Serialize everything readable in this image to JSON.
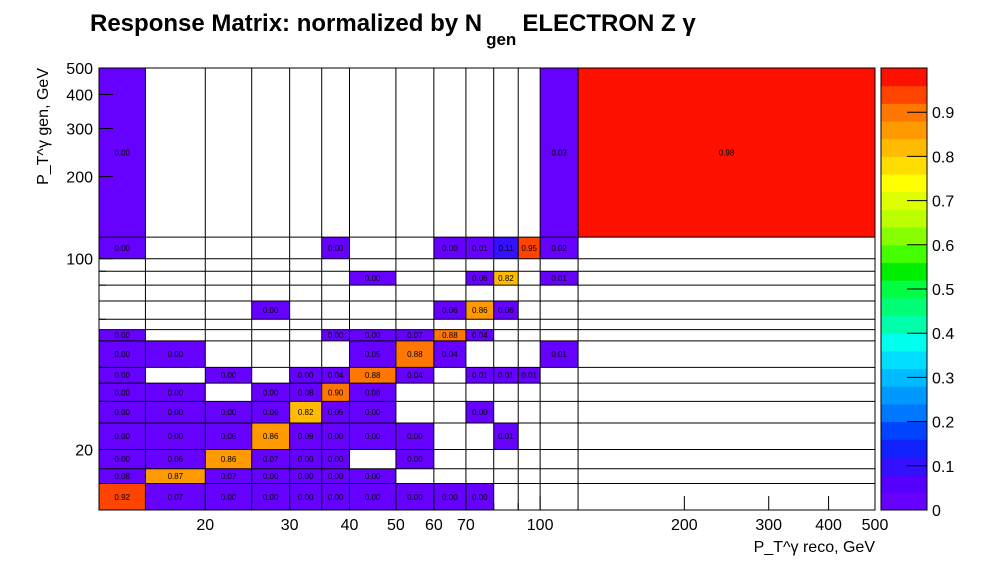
{
  "chart_data": {
    "type": "heatmap",
    "title": {
      "main": "Response Matrix: normalized by N",
      "sub": "gen",
      "suffix": "ELECTRON Z γ"
    },
    "xlabel": "P_T^γ reco, GeV",
    "ylabel": "P_T^γ gen, GeV",
    "x_scale": "log",
    "y_scale": "log",
    "xlim": [
      12,
      500
    ],
    "ylim": [
      12,
      500
    ],
    "x_ticks": [
      20,
      30,
      40,
      50,
      60,
      70,
      100,
      200,
      300,
      400,
      500
    ],
    "y_ticks": [
      20,
      100,
      200,
      300,
      400,
      500
    ],
    "x_bins": [
      12,
      15,
      20,
      25,
      30,
      35,
      40,
      50,
      60,
      70,
      80,
      90,
      100,
      120,
      500
    ],
    "y_bins": [
      12,
      15,
      17,
      20,
      25,
      30,
      35,
      40,
      50,
      55,
      60,
      70,
      80,
      90,
      100,
      120,
      500
    ],
    "colorbar": {
      "range": [
        0,
        1
      ],
      "ticks": [
        "0",
        "0.1",
        "0.2",
        "0.3",
        "0.4",
        "0.5",
        "0.6",
        "0.7",
        "0.8",
        "0.9"
      ]
    },
    "cells": [
      {
        "xi": 0,
        "yi": 0,
        "value": 0.92,
        "label": "0.92"
      },
      {
        "xi": 1,
        "yi": 0,
        "value": 0.07,
        "label": "0.07"
      },
      {
        "xi": 2,
        "yi": 0,
        "value": 0.0,
        "label": "0.00"
      },
      {
        "xi": 3,
        "yi": 0,
        "value": 0.0,
        "label": "0.00"
      },
      {
        "xi": 4,
        "yi": 0,
        "value": 0.0,
        "label": "0.00"
      },
      {
        "xi": 5,
        "yi": 0,
        "value": 0.0,
        "label": "0.00"
      },
      {
        "xi": 6,
        "yi": 0,
        "value": 0.0,
        "label": "0.00"
      },
      {
        "xi": 7,
        "yi": 0,
        "value": 0.0,
        "label": "0.00"
      },
      {
        "xi": 8,
        "yi": 0,
        "value": 0.0,
        "label": "0.00"
      },
      {
        "xi": 9,
        "yi": 0,
        "value": 0.0,
        "label": "0.00"
      },
      {
        "xi": 0,
        "yi": 1,
        "value": 0.08,
        "label": "0.08"
      },
      {
        "xi": 1,
        "yi": 1,
        "value": 0.87,
        "label": "0.87"
      },
      {
        "xi": 2,
        "yi": 1,
        "value": 0.07,
        "label": "0.07"
      },
      {
        "xi": 3,
        "yi": 1,
        "value": 0.0,
        "label": "0.00"
      },
      {
        "xi": 4,
        "yi": 1,
        "value": 0.0,
        "label": "0.00"
      },
      {
        "xi": 5,
        "yi": 1,
        "value": 0.0,
        "label": "0.00"
      },
      {
        "xi": 6,
        "yi": 1,
        "value": 0.0,
        "label": "0.00"
      },
      {
        "xi": 0,
        "yi": 2,
        "value": 0.0,
        "label": "0.00"
      },
      {
        "xi": 1,
        "yi": 2,
        "value": 0.06,
        "label": "0.06"
      },
      {
        "xi": 2,
        "yi": 2,
        "value": 0.86,
        "label": "0.86"
      },
      {
        "xi": 3,
        "yi": 2,
        "value": 0.07,
        "label": "0.07"
      },
      {
        "xi": 4,
        "yi": 2,
        "value": 0.0,
        "label": "0.00"
      },
      {
        "xi": 5,
        "yi": 2,
        "value": 0.0,
        "label": "0.00"
      },
      {
        "xi": 7,
        "yi": 2,
        "value": 0.0,
        "label": "0.00"
      },
      {
        "xi": 0,
        "yi": 3,
        "value": 0.0,
        "label": "0.00"
      },
      {
        "xi": 1,
        "yi": 3,
        "value": 0.0,
        "label": "0.00"
      },
      {
        "xi": 2,
        "yi": 3,
        "value": 0.06,
        "label": "0.06"
      },
      {
        "xi": 3,
        "yi": 3,
        "value": 0.86,
        "label": "0.86"
      },
      {
        "xi": 4,
        "yi": 3,
        "value": 0.09,
        "label": "0.09"
      },
      {
        "xi": 5,
        "yi": 3,
        "value": 0.0,
        "label": "0.00"
      },
      {
        "xi": 6,
        "yi": 3,
        "value": 0.0,
        "label": "0.00"
      },
      {
        "xi": 7,
        "yi": 3,
        "value": 0.0,
        "label": "0.00"
      },
      {
        "xi": 10,
        "yi": 3,
        "value": 0.01,
        "label": "0.01"
      },
      {
        "xi": 0,
        "yi": 4,
        "value": 0.0,
        "label": "0.00"
      },
      {
        "xi": 1,
        "yi": 4,
        "value": 0.0,
        "label": "0.00"
      },
      {
        "xi": 2,
        "yi": 4,
        "value": 0.0,
        "label": "0.00"
      },
      {
        "xi": 3,
        "yi": 4,
        "value": 0.06,
        "label": "0.06"
      },
      {
        "xi": 4,
        "yi": 4,
        "value": 0.82,
        "label": "0.82"
      },
      {
        "xi": 5,
        "yi": 4,
        "value": 0.05,
        "label": "0.05"
      },
      {
        "xi": 6,
        "yi": 4,
        "value": 0.0,
        "label": "0.00"
      },
      {
        "xi": 9,
        "yi": 4,
        "value": 0.0,
        "label": "0.00"
      },
      {
        "xi": 0,
        "yi": 5,
        "value": 0.0,
        "label": "0.00"
      },
      {
        "xi": 1,
        "yi": 5,
        "value": 0.0,
        "label": "0.00"
      },
      {
        "xi": 3,
        "yi": 5,
        "value": 0.0,
        "label": "0.00"
      },
      {
        "xi": 4,
        "yi": 5,
        "value": 0.08,
        "label": "0.08"
      },
      {
        "xi": 5,
        "yi": 5,
        "value": 0.9,
        "label": "0.90"
      },
      {
        "xi": 6,
        "yi": 5,
        "value": 0.06,
        "label": "0.06"
      },
      {
        "xi": 0,
        "yi": 6,
        "value": 0.0,
        "label": "0.00"
      },
      {
        "xi": 2,
        "yi": 6,
        "value": 0.0,
        "label": "0.00"
      },
      {
        "xi": 4,
        "yi": 6,
        "value": 0.0,
        "label": "0.00"
      },
      {
        "xi": 5,
        "yi": 6,
        "value": 0.04,
        "label": "0.04"
      },
      {
        "xi": 6,
        "yi": 6,
        "value": 0.88,
        "label": "0.88"
      },
      {
        "xi": 7,
        "yi": 6,
        "value": 0.04,
        "label": "0.04"
      },
      {
        "xi": 9,
        "yi": 6,
        "value": 0.01,
        "label": "0.01"
      },
      {
        "xi": 10,
        "yi": 6,
        "value": 0.01,
        "label": "0.01"
      },
      {
        "xi": 11,
        "yi": 6,
        "value": 0.01,
        "label": "0.01"
      },
      {
        "xi": 0,
        "yi": 7,
        "value": 0.0,
        "label": "0.00"
      },
      {
        "xi": 1,
        "yi": 7,
        "value": 0.0,
        "label": "0.00"
      },
      {
        "xi": 6,
        "yi": 7,
        "value": 0.05,
        "label": "0.05"
      },
      {
        "xi": 7,
        "yi": 7,
        "value": 0.88,
        "label": "0.88"
      },
      {
        "xi": 8,
        "yi": 7,
        "value": 0.04,
        "label": "0.04"
      },
      {
        "xi": 12,
        "yi": 7,
        "value": 0.01,
        "label": "0.01"
      },
      {
        "xi": 0,
        "yi": 8,
        "value": 0.0,
        "label": "0.00"
      },
      {
        "xi": 5,
        "yi": 8,
        "value": 0.0,
        "label": "0.00"
      },
      {
        "xi": 6,
        "yi": 8,
        "value": 0.0,
        "label": "0.00"
      },
      {
        "xi": 7,
        "yi": 8,
        "value": 0.07,
        "label": "0.07"
      },
      {
        "xi": 8,
        "yi": 8,
        "value": 0.88,
        "label": "0.88"
      },
      {
        "xi": 9,
        "yi": 8,
        "value": 0.04,
        "label": "0.04"
      },
      {
        "xi": 3,
        "yi": 10,
        "value": 0.0,
        "label": "0.00"
      },
      {
        "xi": 8,
        "yi": 10,
        "value": 0.06,
        "label": "0.06"
      },
      {
        "xi": 9,
        "yi": 10,
        "value": 0.86,
        "label": "0.86"
      },
      {
        "xi": 10,
        "yi": 10,
        "value": 0.06,
        "label": "0.06"
      },
      {
        "xi": 6,
        "yi": 12,
        "value": 0.0,
        "label": "0.00"
      },
      {
        "xi": 9,
        "yi": 12,
        "value": 0.06,
        "label": "0.06"
      },
      {
        "xi": 10,
        "yi": 12,
        "value": 0.82,
        "label": "0.82"
      },
      {
        "xi": 12,
        "yi": 12,
        "value": 0.01,
        "label": "0.01"
      },
      {
        "xi": 0,
        "yi": 14,
        "value": 0.0,
        "label": "0.00"
      },
      {
        "xi": 5,
        "yi": 14,
        "value": 0.0,
        "label": "0.00"
      },
      {
        "xi": 8,
        "yi": 14,
        "value": 0.0,
        "label": "0.00"
      },
      {
        "xi": 9,
        "yi": 14,
        "value": 0.01,
        "label": "0.01"
      },
      {
        "xi": 10,
        "yi": 14,
        "value": 0.11,
        "label": "0.11"
      },
      {
        "xi": 11,
        "yi": 14,
        "value": 0.95,
        "label": "0.95"
      },
      {
        "xi": 12,
        "yi": 14,
        "value": 0.02,
        "label": "0.02"
      },
      {
        "xi": 0,
        "yi": 15,
        "value": 0.0,
        "label": "0.00"
      },
      {
        "xi": 12,
        "yi": 15,
        "value": 0.03,
        "label": "0.03"
      },
      {
        "xi": 13,
        "yi": 15,
        "value": 0.98,
        "label": "0.98"
      }
    ]
  }
}
